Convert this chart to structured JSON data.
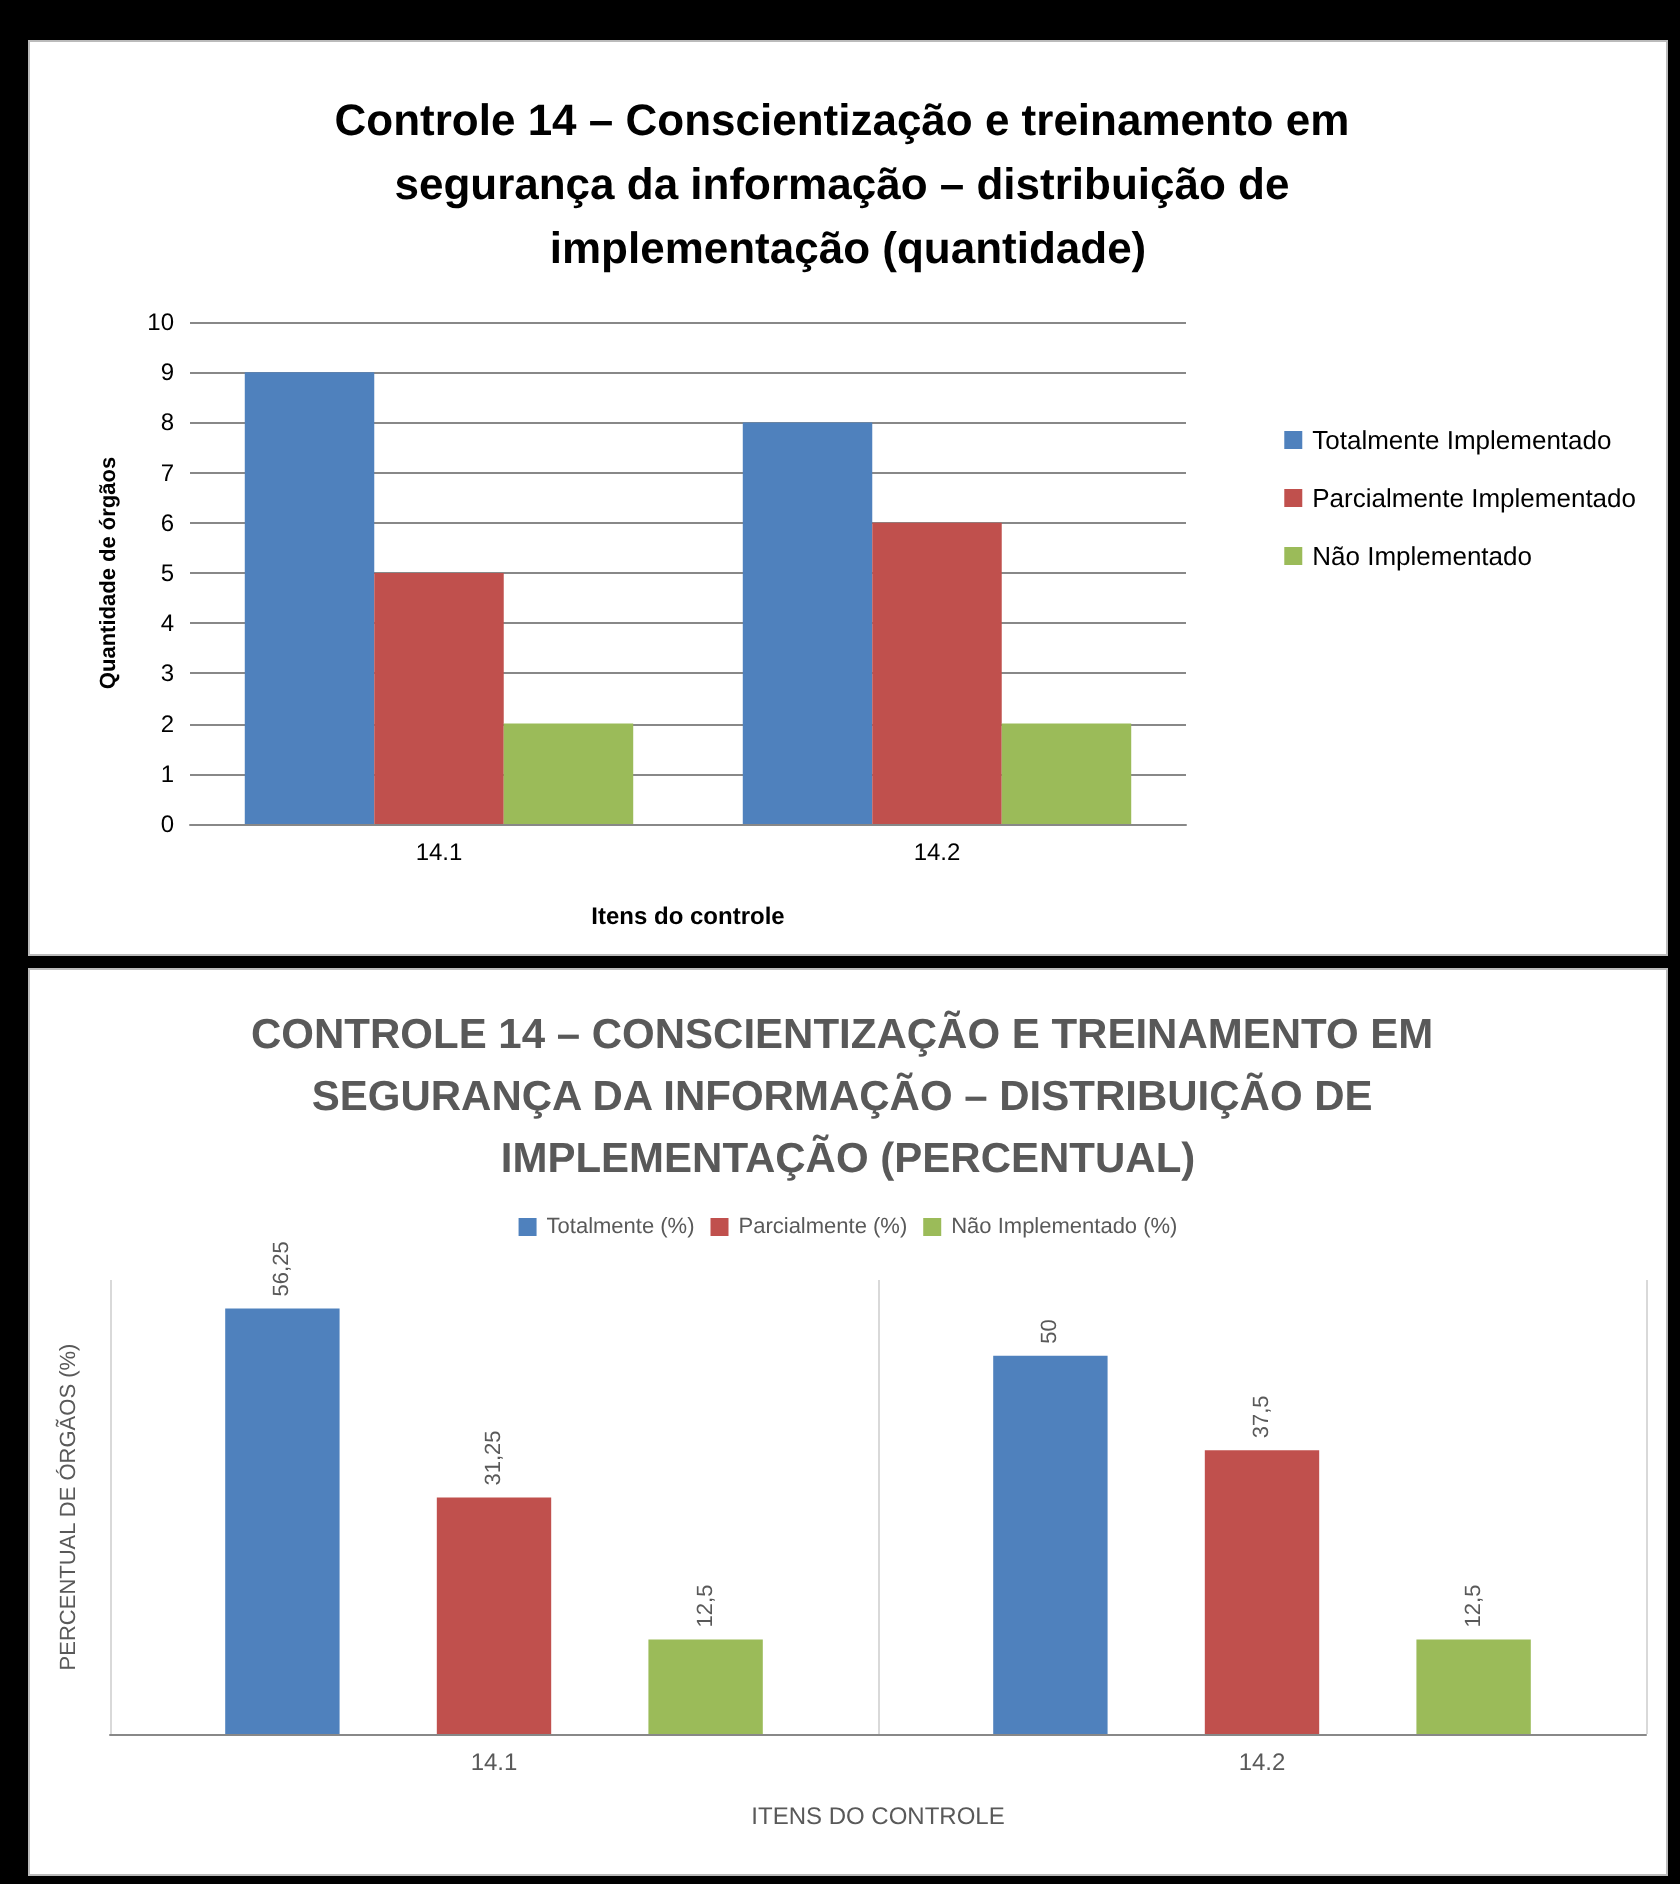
{
  "chart_data": [
    {
      "type": "bar",
      "title": "Controle 14 – Conscientização e treinamento em segurança da informação – distribuição de implementação (quantidade)",
      "xlabel": "Itens do controle",
      "ylabel": "Quantidade de órgãos",
      "categories": [
        "14.1",
        "14.2"
      ],
      "series": [
        {
          "name": "Totalmente Implementado",
          "color": "#4f81bd",
          "values": [
            9,
            8
          ]
        },
        {
          "name": "Parcialmente Implementado",
          "color": "#c0504d",
          "values": [
            5,
            6
          ]
        },
        {
          "name": "Não Implementado",
          "color": "#9bbb59",
          "values": [
            2,
            2
          ]
        }
      ],
      "ylim": [
        0,
        10
      ],
      "yticks": [
        0,
        1,
        2,
        3,
        4,
        5,
        6,
        7,
        8,
        9,
        10
      ],
      "grid": "y",
      "legend": "right"
    },
    {
      "type": "bar",
      "title": "CONTROLE 14 – CONSCIENTIZAÇÃO E TREINAMENTO EM SEGURANÇA DA INFORMAÇÃO – DISTRIBUIÇÃO DE IMPLEMENTAÇÃO (PERCENTUAL)",
      "xlabel": "ITENS DO CONTROLE",
      "ylabel": "PERCENTUAL DE ÓRGÃOS (%)",
      "categories": [
        "14.1",
        "14.2"
      ],
      "series": [
        {
          "name": "Totalmente (%)",
          "color": "#4f81bd",
          "values": [
            56.25,
            50
          ],
          "value_labels": [
            "56,25",
            "50"
          ]
        },
        {
          "name": "Parcialmente (%)",
          "color": "#c0504d",
          "values": [
            31.25,
            37.5
          ],
          "value_labels": [
            "31,25",
            "37,5"
          ]
        },
        {
          "name": "Não Implementado (%)",
          "color": "#9bbb59",
          "values": [
            12.5,
            12.5
          ],
          "value_labels": [
            "12,5",
            "12,5"
          ]
        }
      ],
      "tick_labels": "x",
      "grid": "x",
      "legend": "top"
    }
  ]
}
